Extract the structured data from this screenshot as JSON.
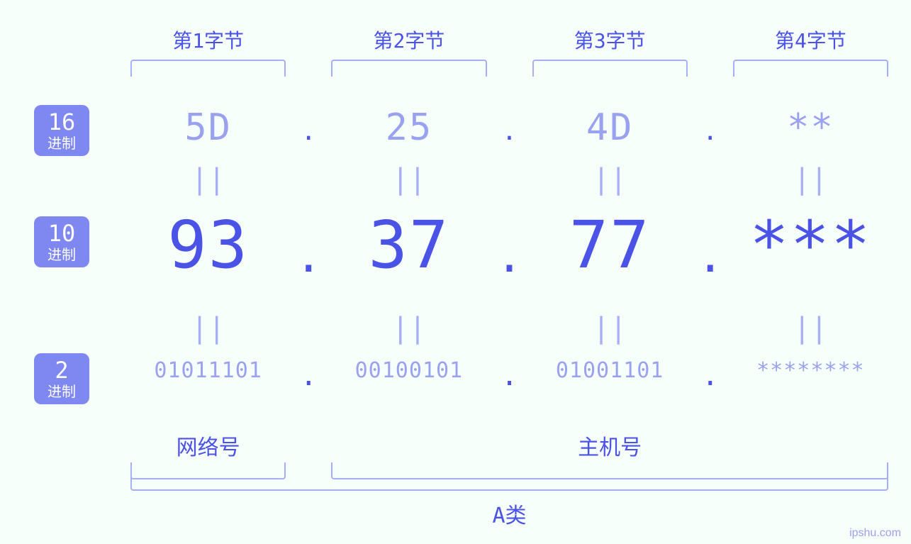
{
  "colors": {
    "background": "#f7fffa",
    "primary": "#4b52e6",
    "primary_soft": "#9aa2f0",
    "badge_bg": "#7e88f0",
    "badge_text": "#ffffff",
    "bracket": "#a7b0f4"
  },
  "fonts": {
    "family": "Consolas, Menlo, DejaVu Sans Mono, Courier New, monospace",
    "byte_label_size": 28,
    "hex_size": 52,
    "dec_size": 92,
    "bin_size": 30,
    "badge_num_size": 32,
    "badge_sub_size": 20,
    "bottom_label_size": 30
  },
  "badges": {
    "hex": {
      "num": "16",
      "sub": "进制"
    },
    "dec": {
      "num": "10",
      "sub": "进制"
    },
    "bin": {
      "num": "2",
      "sub": "进制"
    }
  },
  "byte_labels": [
    "第1字节",
    "第2字节",
    "第3字节",
    "第4字节"
  ],
  "hex": [
    "5D",
    "25",
    "4D",
    "**"
  ],
  "dec": [
    "93",
    "37",
    "77",
    "***"
  ],
  "bin": [
    "01011101",
    "00100101",
    "01001101",
    "********"
  ],
  "equals_glyph": "||",
  "net_label": "网络号",
  "host_label": "主机号",
  "class_label": "A类",
  "split": {
    "network_bytes": 1,
    "host_bytes": 3
  },
  "watermark": "ipshu.com"
}
